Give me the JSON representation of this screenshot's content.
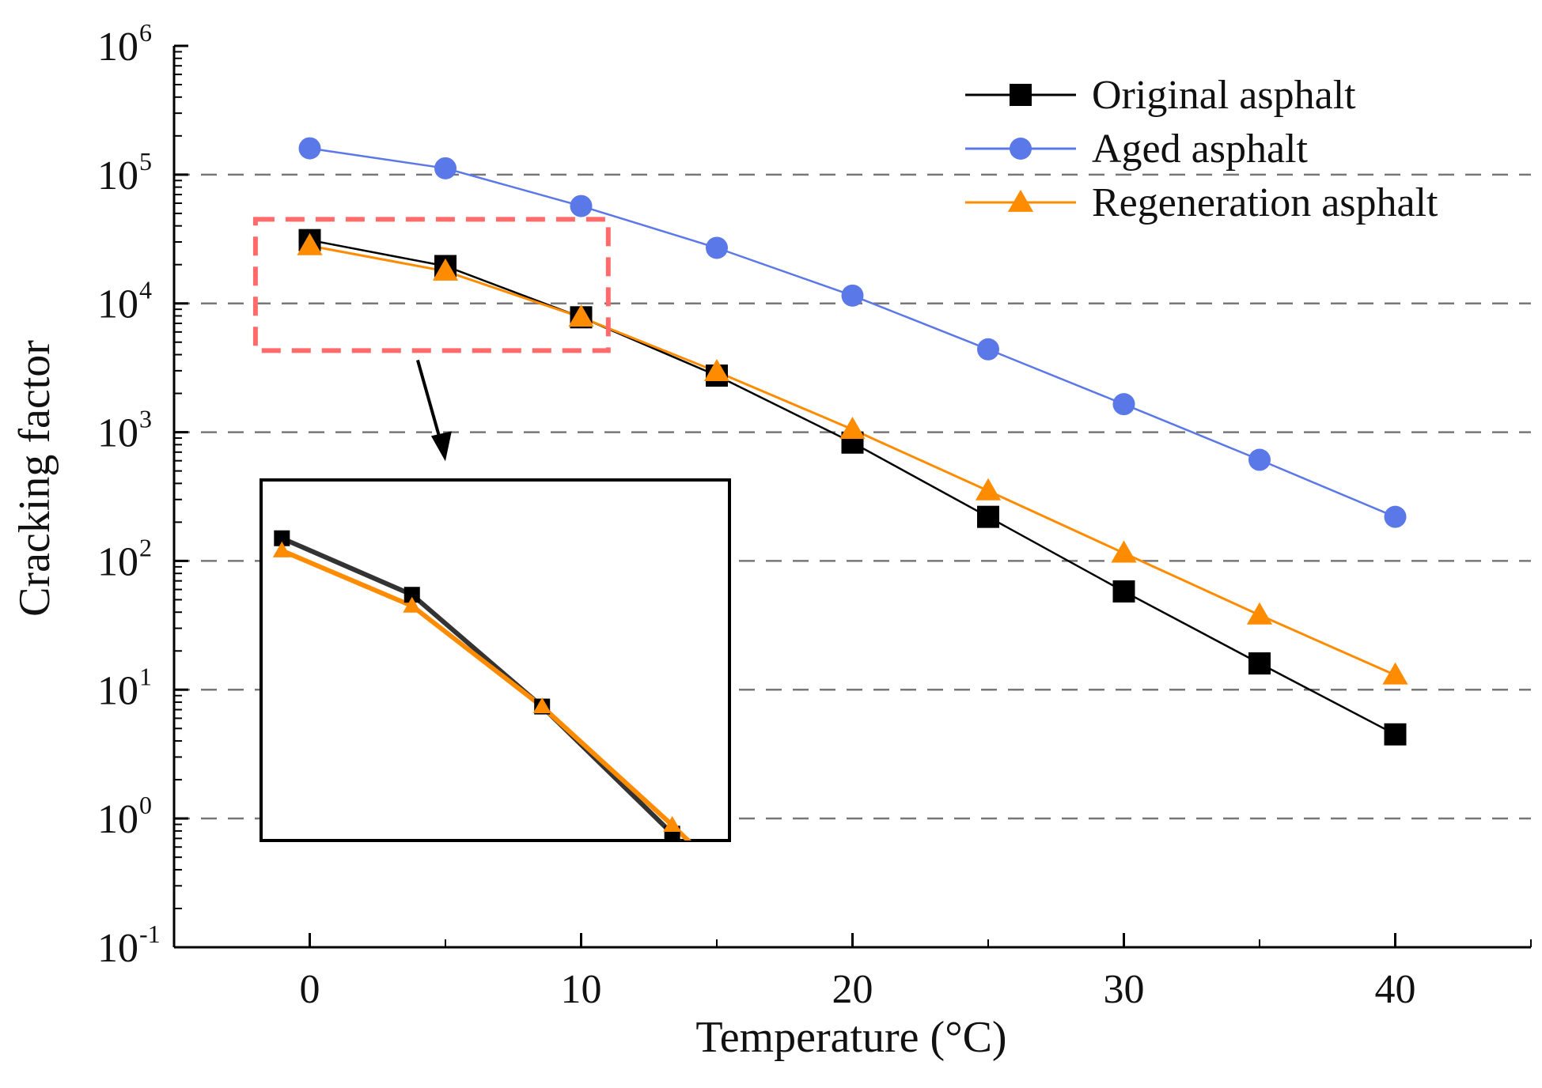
{
  "chart_data": {
    "type": "line",
    "xlabel": "Temperature (°C)",
    "ylabel": "Cracking factor",
    "xscale": "linear",
    "yscale": "log",
    "xlim": [
      -5,
      45
    ],
    "ylim": [
      0.1,
      1000000
    ],
    "x_ticks": [
      0,
      10,
      20,
      30,
      40
    ],
    "y_ticks": [
      {
        "base": "10",
        "exp": "-1",
        "value": 0.1
      },
      {
        "base": "10",
        "exp": "0",
        "value": 1
      },
      {
        "base": "10",
        "exp": "1",
        "value": 10
      },
      {
        "base": "10",
        "exp": "2",
        "value": 100
      },
      {
        "base": "10",
        "exp": "3",
        "value": 1000
      },
      {
        "base": "10",
        "exp": "4",
        "value": 10000
      },
      {
        "base": "10",
        "exp": "5",
        "value": 100000
      },
      {
        "base": "10",
        "exp": "6",
        "value": 1000000
      }
    ],
    "gridlines": "horizontal dashed at each decade",
    "legend_position": "top-right",
    "x": [
      0,
      5,
      10,
      15,
      20,
      25,
      30,
      35,
      40
    ],
    "series": [
      {
        "name": "Original asphalt",
        "marker": "square",
        "color": "#000000",
        "values": [
          31000,
          19500,
          7800,
          2750,
          830,
          220,
          58,
          16,
          4.5
        ]
      },
      {
        "name": "Aged asphalt",
        "marker": "circle",
        "color": "#5b78e8",
        "values": [
          160000,
          112000,
          57000,
          27000,
          11500,
          4400,
          1650,
          610,
          220
        ]
      },
      {
        "name": "Regeneration asphalt",
        "marker": "triangle",
        "color": "#ff8c00",
        "values": [
          28000,
          17800,
          7800,
          2950,
          1050,
          350,
          115,
          38,
          13
        ]
      }
    ],
    "zoom_region": {
      "x_range": [
        -2,
        11
      ],
      "y_range": [
        4300,
        45000
      ],
      "color": "#ff6b6b"
    },
    "inset": {
      "description": "magnified view of zoom region",
      "border": "#000000"
    }
  }
}
